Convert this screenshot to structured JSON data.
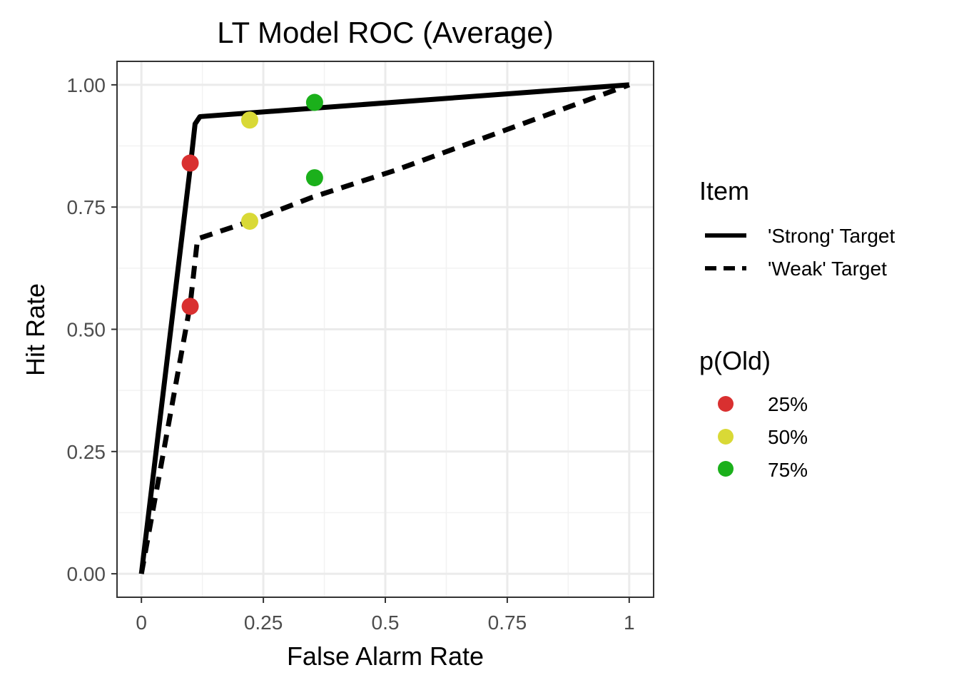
{
  "chart_data": {
    "type": "line",
    "title": "LT Model ROC (Average)",
    "xlabel": "False Alarm Rate",
    "ylabel": "Hit Rate",
    "xlim": [
      -0.05,
      1.05
    ],
    "ylim": [
      -0.048,
      1.048
    ],
    "x_ticks": [
      0,
      0.25,
      0.5,
      0.75,
      1
    ],
    "x_tick_labels": [
      "0",
      "0.25",
      "0.5",
      "0.75",
      "1"
    ],
    "y_ticks": [
      0,
      0.25,
      0.5,
      0.75,
      1
    ],
    "y_tick_labels": [
      "0.00",
      "0.25",
      "0.50",
      "0.75",
      "1.00"
    ],
    "grid": true,
    "series": [
      {
        "name": "'Strong' Target",
        "style": "solid",
        "color": "#000000",
        "x": [
          0,
          0.1,
          0.11,
          0.12,
          1
        ],
        "y": [
          0,
          0.83,
          0.92,
          0.935,
          1
        ]
      },
      {
        "name": "'Weak' Target",
        "style": "dashed",
        "color": "#000000",
        "x": [
          0,
          0.1,
          0.115,
          0.22,
          0.35,
          0.52,
          1
        ],
        "y": [
          0,
          0.55,
          0.685,
          0.72,
          0.77,
          0.825,
          1
        ]
      }
    ],
    "points": [
      {
        "x": 0.1,
        "y": 0.84,
        "group": "25%"
      },
      {
        "x": 0.1,
        "y": 0.547,
        "group": "25%"
      },
      {
        "x": 0.222,
        "y": 0.928,
        "group": "50%"
      },
      {
        "x": 0.222,
        "y": 0.721,
        "group": "50%"
      },
      {
        "x": 0.355,
        "y": 0.964,
        "group": "75%"
      },
      {
        "x": 0.355,
        "y": 0.81,
        "group": "75%"
      }
    ],
    "legend_line": {
      "title": "Item",
      "entries": [
        {
          "label": "'Strong' Target",
          "style": "solid"
        },
        {
          "label": "'Weak' Target",
          "style": "dashed"
        }
      ]
    },
    "legend_points": {
      "title": "p(Old)",
      "entries": [
        {
          "label": "25%",
          "color": "#d93030"
        },
        {
          "label": "50%",
          "color": "#d9d936"
        },
        {
          "label": "75%",
          "color": "#1bb01b"
        }
      ]
    },
    "legend_placement": "right"
  }
}
